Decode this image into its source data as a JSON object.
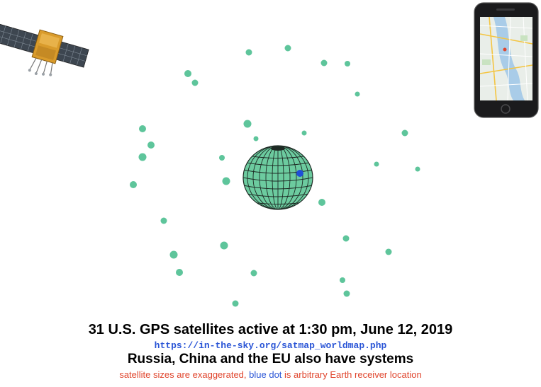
{
  "diagram": {
    "satellite_color": "#5ec59b",
    "globe_color": "#6ccb9f",
    "receiver_color": "#1f4fd8",
    "satellite_count": 31,
    "satellites": [
      {
        "id": 1
      },
      {
        "id": 2
      },
      {
        "id": 3
      },
      {
        "id": 4
      },
      {
        "id": 5
      },
      {
        "id": 6
      },
      {
        "id": 7
      },
      {
        "id": 8
      },
      {
        "id": 9
      },
      {
        "id": 10
      },
      {
        "id": 11
      },
      {
        "id": 12
      },
      {
        "id": 13
      },
      {
        "id": 14
      },
      {
        "id": 15
      },
      {
        "id": 16
      },
      {
        "id": 17
      },
      {
        "id": 18
      },
      {
        "id": 19
      },
      {
        "id": 20
      },
      {
        "id": 21
      },
      {
        "id": 22
      },
      {
        "id": 23
      },
      {
        "id": 24
      },
      {
        "id": 25
      },
      {
        "id": 26
      },
      {
        "id": 27
      },
      {
        "id": 28
      },
      {
        "id": 29
      },
      {
        "id": 30
      },
      {
        "id": 31
      }
    ]
  },
  "captions": {
    "title": "31 U.S. GPS satellites active at 1:30 pm, June 12, 2019",
    "source_url": "https://in-the-sky.org/satmap_worldmap.php",
    "subtitle": "Russia, China and the EU also have systems",
    "note_part1": "satellite sizes are exaggerated,",
    "note_part2": "blue dot",
    "note_part3": "is arbitrary Earth receiver location",
    "note_red_color": "#e0452d",
    "note_blue_color": "#2a55d6"
  },
  "icons": {
    "satellite": "gps-satellite-illustration",
    "phone": "smartphone-map-illustration"
  }
}
